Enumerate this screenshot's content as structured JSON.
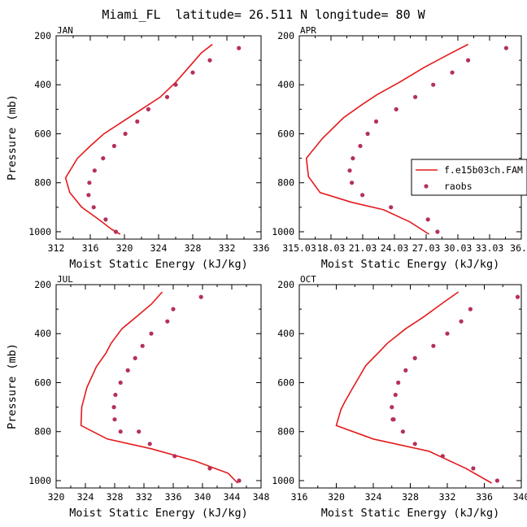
{
  "title": "Miami_FL  latitude= 26.511 N longitude= 80 W",
  "colors": {
    "model": "#e41a1c",
    "obs": "#b5305a",
    "axis": "#000000"
  },
  "legend": {
    "placement": "inside right of APR panel",
    "entries": [
      {
        "label": "f.e15b03ch.FAM",
        "style": "line"
      },
      {
        "label": "raobs",
        "style": "marker"
      }
    ]
  },
  "chart_data": [
    {
      "type": "line",
      "panel_label": "JAN",
      "xlabel": "Moist Static Energy (kJ/kg)",
      "ylabel": "Pressure (mb)",
      "xlim": [
        312,
        336
      ],
      "ylim": [
        1030,
        200
      ],
      "xticks": [
        312,
        316,
        320,
        324,
        328,
        332,
        336
      ],
      "xticklabels": [
        "312",
        "316",
        "320",
        "324",
        "328",
        "332",
        "336"
      ],
      "yticks": [
        200,
        400,
        600,
        800,
        1000
      ],
      "yticklabels": [
        "200",
        "400",
        "600",
        "800",
        "1000"
      ],
      "series": [
        {
          "name": "f.e15b03ch.FAM",
          "kind": "line",
          "x": [
            330.3,
            329.0,
            327.5,
            326.0,
            324.2,
            322.0,
            319.8,
            317.6,
            316.0,
            314.5,
            313.1,
            313.6,
            315.0,
            317.0,
            318.5,
            319.5
          ],
          "y": [
            235,
            270,
            330,
            390,
            450,
            500,
            550,
            600,
            650,
            700,
            780,
            840,
            900,
            950,
            990,
            1010
          ]
        },
        {
          "name": "raobs",
          "kind": "scatter",
          "x": [
            333.4,
            330.0,
            328.0,
            326.0,
            325.0,
            322.8,
            321.5,
            320.1,
            318.8,
            317.5,
            316.5,
            315.9,
            315.8,
            316.4,
            317.8,
            319.0
          ],
          "y": [
            250,
            300,
            350,
            400,
            450,
            500,
            550,
            600,
            650,
            700,
            750,
            800,
            850,
            900,
            950,
            1000
          ]
        }
      ]
    },
    {
      "type": "line",
      "panel_label": "APR",
      "xlabel": "Moist Static Energy (kJ/kg)",
      "ylabel": "",
      "xlim": [
        315.03,
        336.03
      ],
      "ylim": [
        1030,
        200
      ],
      "xticks": [
        315.03,
        318.03,
        321.03,
        324.03,
        327.03,
        330.03,
        333.03,
        336.03
      ],
      "xticklabels": [
        "315.03",
        "18.03",
        "21.03",
        "24.03",
        "27.03",
        "30.03",
        "33.03",
        "36.0"
      ],
      "yticks": [
        200,
        400,
        600,
        800,
        1000
      ],
      "yticklabels": [
        "200",
        "400",
        "600",
        "800",
        "1000"
      ],
      "series": [
        {
          "name": "f.e15b03ch.FAM",
          "kind": "line",
          "x": [
            331.0,
            329.2,
            326.8,
            324.5,
            322.4,
            321.0,
            319.2,
            317.2,
            315.7,
            315.9,
            317.0,
            320.0,
            323.0,
            325.5,
            327.3
          ],
          "y": [
            235,
            275,
            330,
            390,
            440,
            480,
            535,
            620,
            700,
            775,
            840,
            880,
            910,
            960,
            1010
          ]
        },
        {
          "name": "raobs",
          "kind": "scatter",
          "x": [
            334.6,
            331.0,
            329.5,
            327.7,
            326.0,
            324.2,
            322.3,
            321.5,
            320.8,
            320.1,
            319.8,
            320.0,
            321.0,
            323.7,
            327.2,
            328.1
          ],
          "y": [
            250,
            300,
            350,
            400,
            450,
            500,
            550,
            600,
            650,
            700,
            750,
            800,
            850,
            900,
            950,
            1000
          ]
        }
      ]
    },
    {
      "type": "line",
      "panel_label": "JUL",
      "xlabel": "Moist Static Energy (kJ/kg)",
      "ylabel": "Pressure (mb)",
      "xlim": [
        320,
        348
      ],
      "ylim": [
        1030,
        200
      ],
      "xticks": [
        320,
        324,
        328,
        332,
        336,
        340,
        344,
        348
      ],
      "xticklabels": [
        "320",
        "324",
        "328",
        "332",
        "336",
        "340",
        "344",
        "348"
      ],
      "yticks": [
        200,
        400,
        600,
        800,
        1000
      ],
      "yticklabels": [
        "200",
        "400",
        "600",
        "800",
        "1000"
      ],
      "series": [
        {
          "name": "f.e15b03ch.FAM",
          "kind": "line",
          "x": [
            334.5,
            333.0,
            331.0,
            329.0,
            327.5,
            326.8,
            325.5,
            324.2,
            323.5,
            323.4,
            327.0,
            333.0,
            339.0,
            343.5,
            344.8
          ],
          "y": [
            230,
            280,
            330,
            380,
            440,
            480,
            535,
            620,
            700,
            775,
            830,
            870,
            920,
            970,
            1010
          ]
        },
        {
          "name": "raobs",
          "kind": "scatter",
          "x": [
            339.8,
            336.0,
            335.2,
            333.0,
            331.8,
            330.8,
            329.8,
            328.8,
            328.1,
            327.9,
            328.0,
            328.8,
            331.3,
            332.8,
            336.2,
            341.0,
            345.0
          ],
          "y": [
            250,
            300,
            350,
            400,
            450,
            500,
            550,
            600,
            650,
            700,
            750,
            800,
            800,
            850,
            900,
            950,
            1000
          ]
        }
      ]
    },
    {
      "type": "line",
      "panel_label": "OCT",
      "xlabel": "Moist Static Energy (kJ/kg)",
      "ylabel": "",
      "xlim": [
        316,
        340
      ],
      "ylim": [
        1030,
        200
      ],
      "xticks": [
        316,
        320,
        324,
        328,
        332,
        336,
        340
      ],
      "xticklabels": [
        "316",
        "320",
        "324",
        "328",
        "332",
        "336",
        "340"
      ],
      "yticks": [
        200,
        400,
        600,
        800,
        1000
      ],
      "yticklabels": [
        "200",
        "400",
        "600",
        "800",
        "1000"
      ],
      "series": [
        {
          "name": "f.e15b03ch.FAM",
          "kind": "line",
          "x": [
            333.2,
            331.5,
            329.5,
            327.5,
            325.5,
            324.5,
            323.2,
            321.8,
            320.9,
            320.5,
            320.0,
            324.0,
            330.0,
            334.0,
            336.8
          ],
          "y": [
            230,
            275,
            330,
            380,
            440,
            480,
            530,
            620,
            680,
            710,
            775,
            830,
            880,
            950,
            1010
          ]
        },
        {
          "name": "raobs",
          "kind": "scatter",
          "x": [
            339.6,
            334.5,
            333.5,
            332.0,
            330.5,
            328.5,
            327.5,
            326.7,
            326.4,
            326.0,
            326.1,
            326.2,
            327.2,
            328.5,
            331.5,
            334.8,
            337.4
          ],
          "y": [
            250,
            300,
            350,
            400,
            450,
            500,
            550,
            600,
            650,
            700,
            750,
            750,
            800,
            850,
            900,
            950,
            1000
          ]
        }
      ]
    }
  ]
}
